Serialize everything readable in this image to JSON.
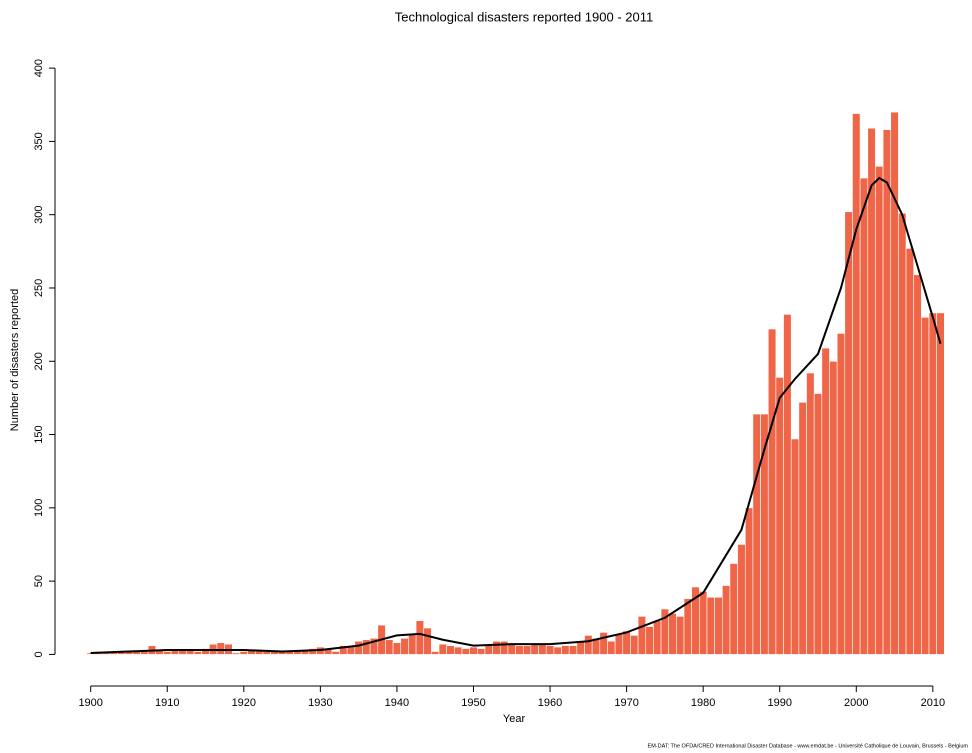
{
  "chart_data": {
    "type": "bar",
    "title": "Technological disasters reported 1900 - 2011",
    "x_label": "Year",
    "y_label": "Number of disasters reported",
    "source": "EM-DAT: The OFDA/CRED International Disaster Database - www.emdat.be - Université Catholique de Louvain, Brussels - Belgium",
    "color": "#ef6548",
    "x": [
      1900,
      1901,
      1902,
      1903,
      1904,
      1905,
      1906,
      1907,
      1908,
      1909,
      1910,
      1911,
      1912,
      1913,
      1914,
      1915,
      1916,
      1917,
      1918,
      1919,
      1920,
      1921,
      1922,
      1923,
      1924,
      1925,
      1926,
      1927,
      1928,
      1929,
      1930,
      1931,
      1932,
      1933,
      1934,
      1935,
      1936,
      1937,
      1938,
      1939,
      1940,
      1941,
      1942,
      1943,
      1944,
      1945,
      1946,
      1947,
      1948,
      1949,
      1950,
      1951,
      1952,
      1953,
      1954,
      1955,
      1956,
      1957,
      1958,
      1959,
      1960,
      1961,
      1962,
      1963,
      1964,
      1965,
      1966,
      1967,
      1968,
      1969,
      1970,
      1971,
      1972,
      1973,
      1974,
      1975,
      1976,
      1977,
      1978,
      1979,
      1980,
      1981,
      1982,
      1983,
      1984,
      1985,
      1986,
      1987,
      1988,
      1989,
      1990,
      1991,
      1992,
      1993,
      1994,
      1995,
      1996,
      1997,
      1998,
      1999,
      2000,
      2001,
      2002,
      2003,
      2004,
      2005,
      2006,
      2007,
      2008,
      2009,
      2010,
      2011
    ],
    "values": [
      1,
      2,
      2,
      2,
      2,
      2,
      2,
      3,
      6,
      3,
      2,
      3,
      3,
      3,
      2,
      4,
      7,
      8,
      7,
      1,
      2,
      3,
      3,
      2,
      2,
      2,
      2,
      3,
      3,
      4,
      5,
      4,
      2,
      6,
      6,
      9,
      10,
      11,
      20,
      10,
      8,
      11,
      14,
      23,
      18,
      2,
      7,
      6,
      5,
      4,
      5,
      4,
      7,
      9,
      9,
      7,
      6,
      6,
      7,
      7,
      6,
      5,
      6,
      6,
      9,
      13,
      11,
      15,
      9,
      14,
      16,
      13,
      26,
      19,
      23,
      31,
      28,
      26,
      38,
      46,
      43,
      39,
      39,
      47,
      62,
      75,
      100,
      164,
      164,
      222,
      189,
      232,
      147,
      172,
      192,
      178,
      209,
      200,
      219,
      302,
      369,
      325,
      359,
      333,
      358,
      370,
      301,
      277,
      259,
      230,
      233,
      233
    ],
    "trend": {
      "color": "#000000",
      "x": [
        1900,
        1905,
        1910,
        1915,
        1920,
        1925,
        1930,
        1935,
        1940,
        1943,
        1946,
        1950,
        1955,
        1960,
        1965,
        1970,
        1975,
        1980,
        1985,
        1988,
        1990,
        1992,
        1995,
        1998,
        2000,
        2002,
        2003,
        2004,
        2006,
        2008,
        2010,
        2011
      ],
      "values": [
        1,
        2,
        3,
        3,
        3,
        2,
        3,
        6,
        13,
        14,
        10,
        6,
        7,
        7,
        9,
        15,
        25,
        42,
        85,
        140,
        175,
        188,
        205,
        250,
        290,
        320,
        325,
        322,
        300,
        265,
        230,
        212
      ]
    },
    "xlim": [
      1895.6,
      2014.2
    ],
    "ylim": [
      -12,
      411
    ],
    "xticks": [
      1900,
      1910,
      1920,
      1930,
      1940,
      1950,
      1960,
      1970,
      1980,
      1990,
      2000,
      2010
    ],
    "yticks": [
      0,
      50,
      100,
      150,
      200,
      250,
      300,
      350,
      400
    ]
  }
}
